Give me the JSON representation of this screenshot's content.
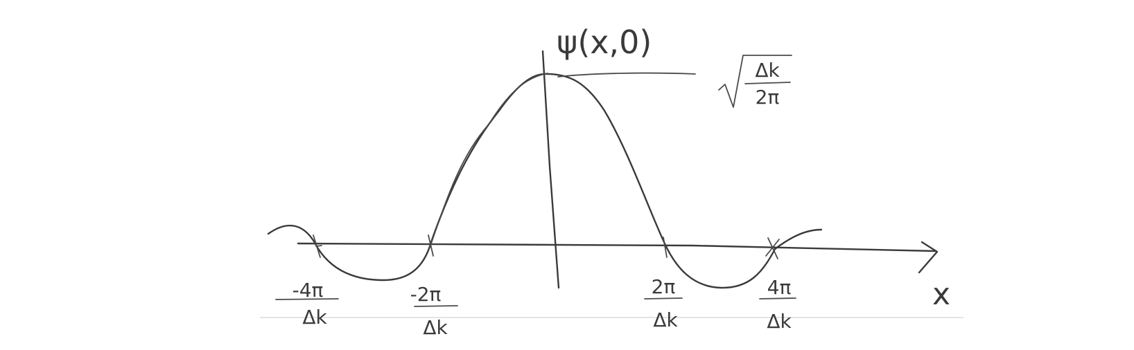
{
  "function_label": "ψ(x,0)",
  "peak_value": {
    "numerator": "Δk",
    "denominator": "2π"
  },
  "x_axis_label": "x",
  "ticks": [
    {
      "numerator": "-4π",
      "denominator": "Δk"
    },
    {
      "numerator": "-2π",
      "denominator": "Δk"
    },
    {
      "numerator": "2π",
      "denominator": "Δk"
    },
    {
      "numerator": "4π",
      "denominator": "Δk"
    }
  ]
}
